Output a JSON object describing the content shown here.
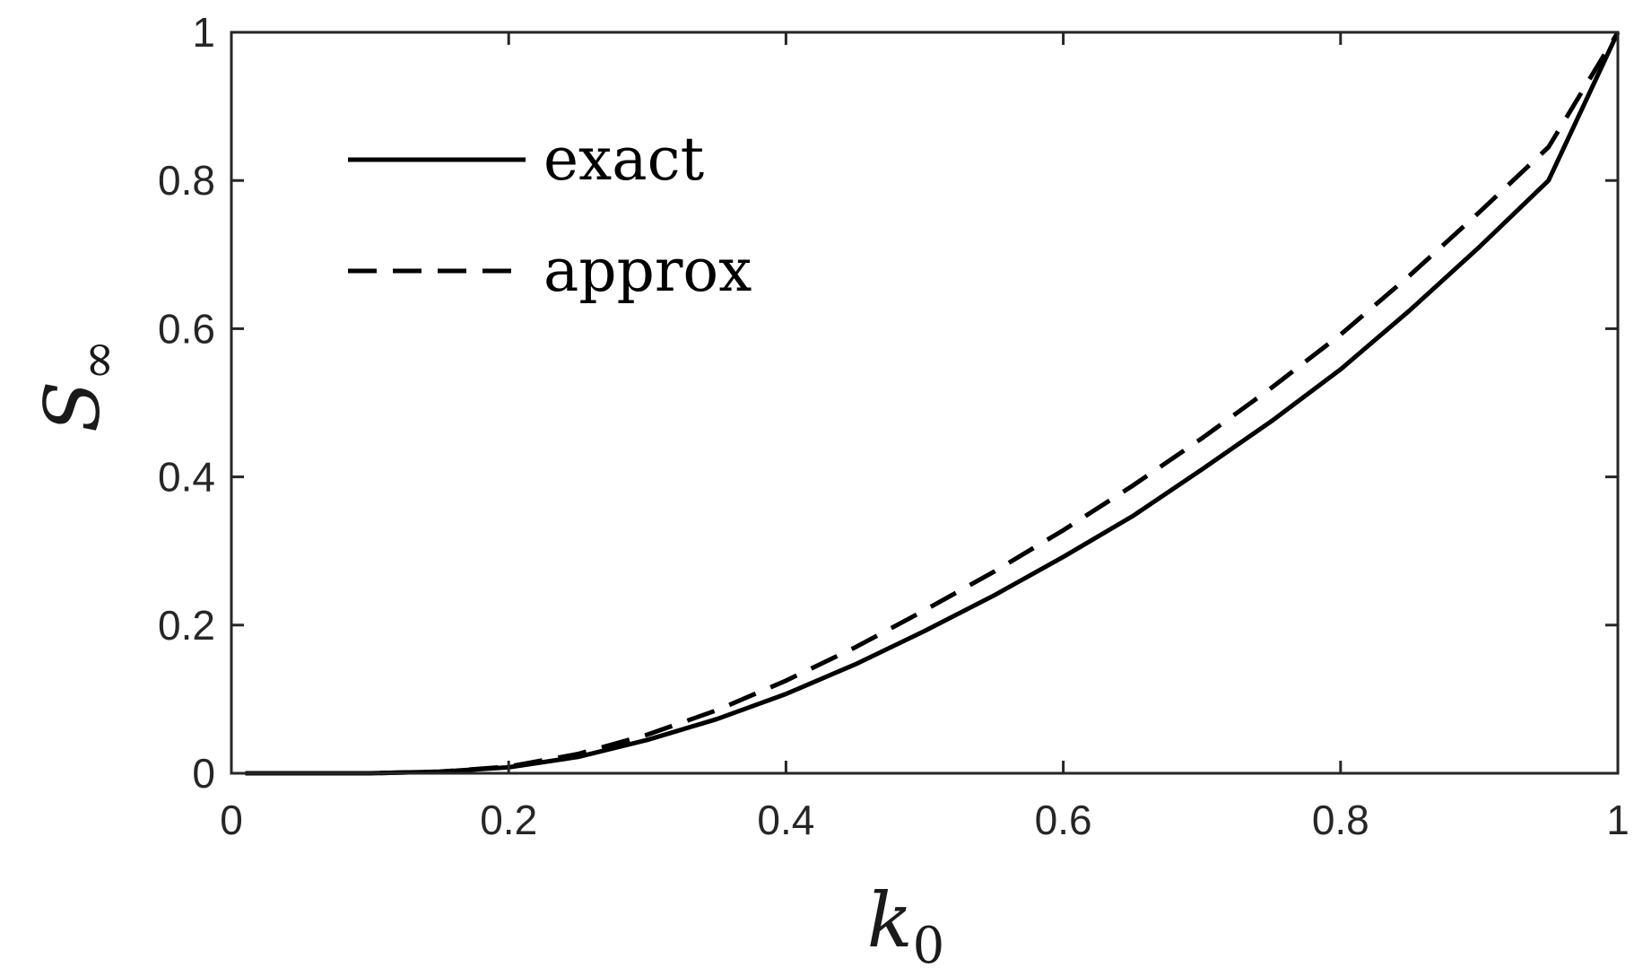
{
  "chart_data": {
    "type": "line",
    "title": "",
    "xlabel": "k",
    "xlabel_subscript": "0",
    "ylabel": "S",
    "ylabel_subscript": "∞",
    "xlim": [
      0,
      1
    ],
    "ylim": [
      0,
      1
    ],
    "xticks": [
      0,
      0.2,
      0.4,
      0.6,
      0.8,
      1
    ],
    "xtick_labels": [
      "0",
      "0.2",
      "0.4",
      "0.6",
      "0.8",
      "1"
    ],
    "yticks": [
      0,
      0.2,
      0.4,
      0.6,
      0.8,
      1
    ],
    "ytick_labels": [
      "0",
      "0.2",
      "0.4",
      "0.6",
      "0.8",
      "1"
    ],
    "grid": false,
    "legend_position": "top-left",
    "series": [
      {
        "name": "exact",
        "style": "solid",
        "color": "#000000",
        "x": [
          0.01,
          0.05,
          0.1,
          0.15,
          0.2,
          0.25,
          0.3,
          0.35,
          0.4,
          0.45,
          0.5,
          0.55,
          0.6,
          0.65,
          0.7,
          0.75,
          0.8,
          0.85,
          0.9,
          0.95,
          1.0
        ],
        "y": [
          0.0,
          0.0,
          0.0,
          0.002,
          0.008,
          0.022,
          0.045,
          0.073,
          0.107,
          0.147,
          0.192,
          0.24,
          0.292,
          0.347,
          0.41,
          0.475,
          0.545,
          0.625,
          0.71,
          0.8,
          1.0
        ]
      },
      {
        "name": "approx",
        "style": "dashed",
        "color": "#000000",
        "x": [
          0.01,
          0.05,
          0.1,
          0.15,
          0.2,
          0.25,
          0.3,
          0.35,
          0.4,
          0.45,
          0.5,
          0.55,
          0.6,
          0.65,
          0.7,
          0.75,
          0.8,
          0.85,
          0.9,
          0.95,
          1.0
        ],
        "y": [
          0.0,
          0.0,
          0.0,
          0.002,
          0.009,
          0.026,
          0.052,
          0.085,
          0.125,
          0.17,
          0.22,
          0.272,
          0.328,
          0.388,
          0.452,
          0.52,
          0.592,
          0.672,
          0.757,
          0.845,
          1.0
        ]
      }
    ]
  }
}
